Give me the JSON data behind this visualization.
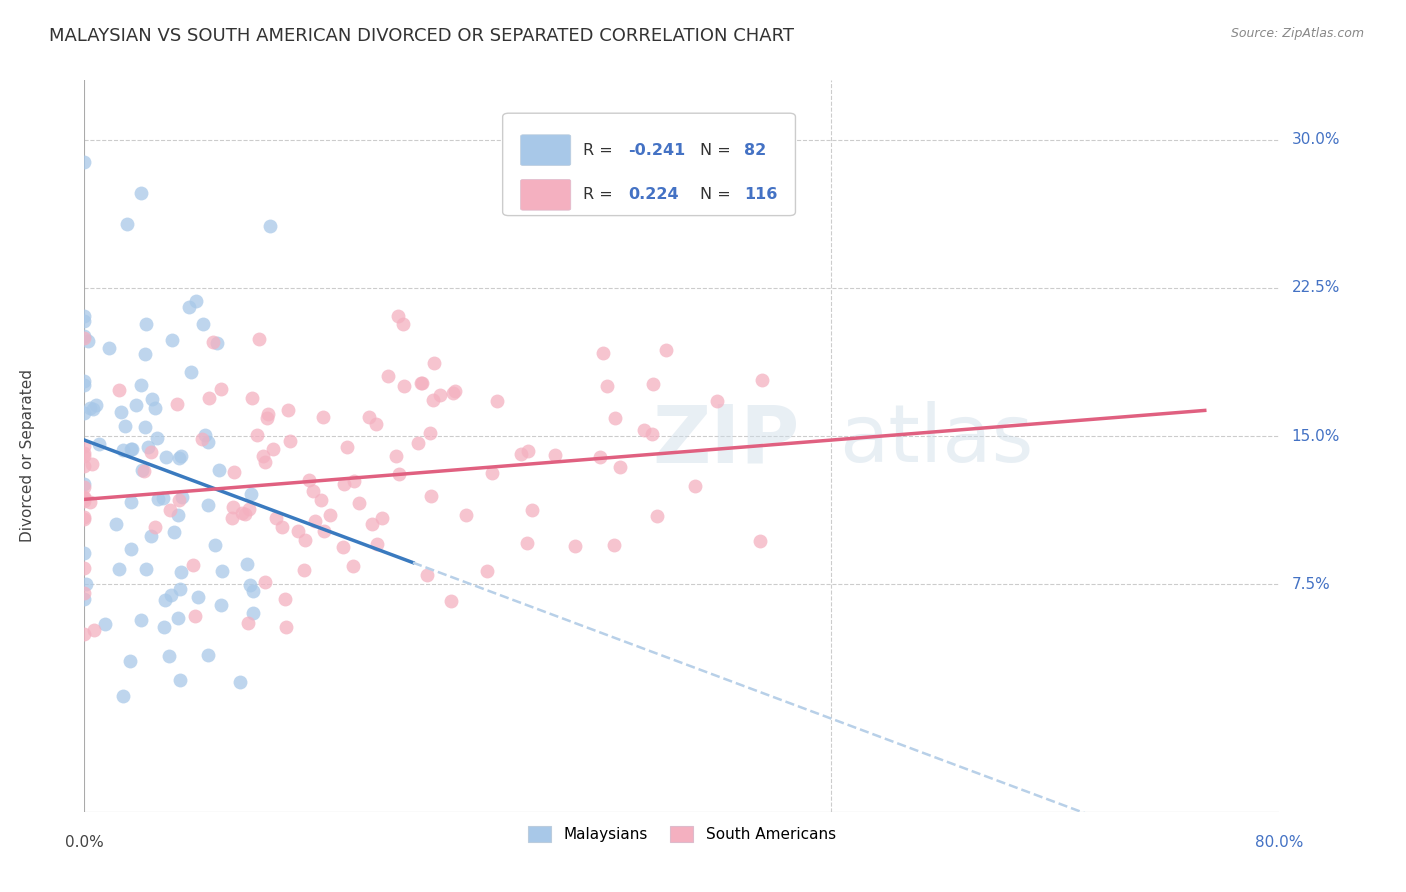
{
  "title": "MALAYSIAN VS SOUTH AMERICAN DIVORCED OR SEPARATED CORRELATION CHART",
  "source": "Source: ZipAtlas.com",
  "ylabel": "Divorced or Separated",
  "ytick_labels": [
    "7.5%",
    "15.0%",
    "22.5%",
    "30.0%"
  ],
  "ytick_values": [
    0.075,
    0.15,
    0.225,
    0.3
  ],
  "xlim": [
    0.0,
    0.8
  ],
  "ylim": [
    -0.04,
    0.33
  ],
  "blue_color": "#a8c8e8",
  "pink_color": "#f4b0c0",
  "line_blue_solid": "#3a7abf",
  "line_pink_solid": "#e06080",
  "line_dash": "#b8d0e8",
  "title_fontsize": 13,
  "axis_label_fontsize": 10,
  "tick_fontsize": 11,
  "blue_seed": 42,
  "pink_seed": 7,
  "blue_n": 82,
  "pink_n": 116,
  "blue_line_x0": 0.0,
  "blue_line_y0": 0.148,
  "blue_line_x1": 0.22,
  "blue_line_y1": 0.086,
  "pink_line_x0": 0.0,
  "pink_line_y0": 0.118,
  "pink_line_x1": 0.75,
  "pink_line_y1": 0.163,
  "dash_line_x0": 0.22,
  "dash_line_x1": 0.8,
  "scatter_marker_size": 100,
  "scatter_alpha": 0.75,
  "watermark_zip_color": "#c8d8e8",
  "watermark_atlas_color": "#c8d8e8"
}
